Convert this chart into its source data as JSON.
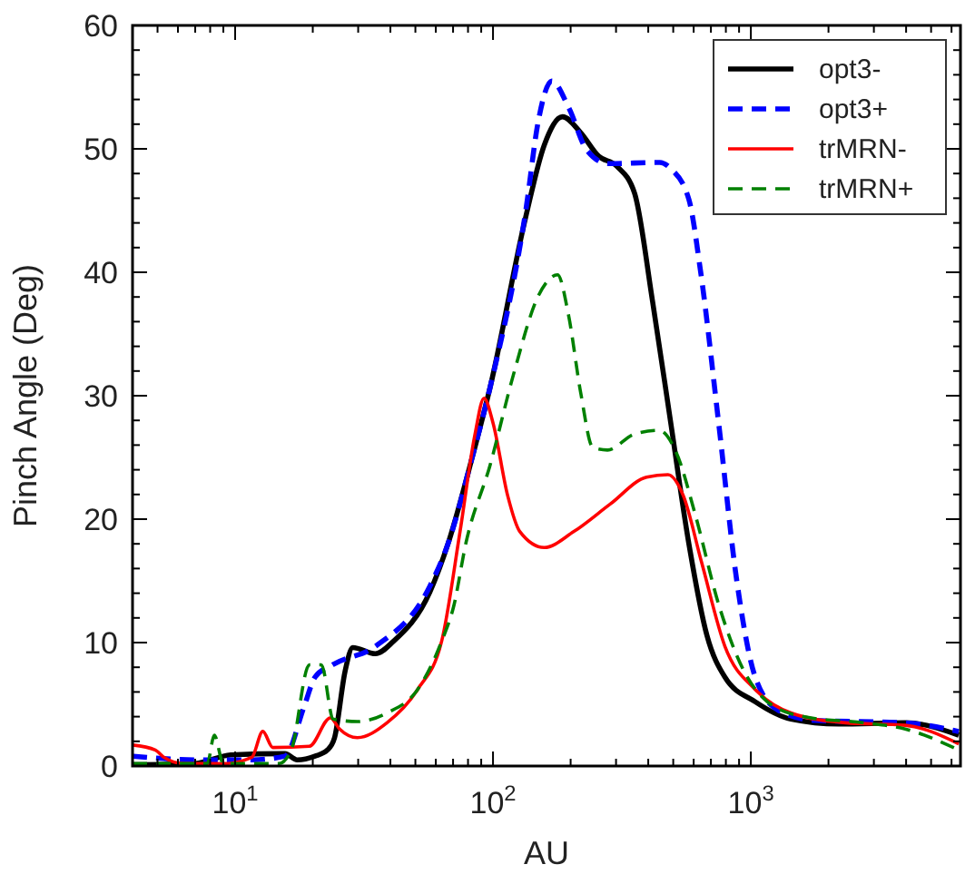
{
  "chart_data": {
    "type": "line",
    "xlabel": "AU",
    "ylabel": "Pinch Angle (Deg)",
    "log": "x",
    "xlim": [
      4,
      6500
    ],
    "ylim": [
      0,
      60
    ],
    "xticks": [
      {
        "value": 10,
        "label": "10$^{1}$"
      },
      {
        "value": 100,
        "label": "10$^{2}$"
      },
      {
        "value": 1000,
        "label": "10$^{3}$"
      }
    ],
    "yticks": [
      0,
      10,
      20,
      30,
      40,
      50,
      60
    ],
    "legend": "top right",
    "grid": false,
    "series": [
      {
        "name": "opt3-",
        "color": "#000000",
        "line_style": "solid",
        "x": [
          4,
          7,
          9.6,
          15.6,
          17.4,
          20.4,
          22.8,
          24.3,
          26.7,
          28.6,
          35,
          41.1,
          56.9,
          66.9,
          82.8,
          97.5,
          134,
          158,
          186,
          219,
          257,
          302,
          354,
          416,
          489,
          575,
          675,
          793,
          1040,
          1430,
          2190,
          3970,
          6400
        ],
        "values": [
          0.1,
          0.2,
          0.9,
          1.0,
          0.5,
          0.8,
          1.3,
          2.3,
          7.7,
          9.6,
          9.1,
          10.1,
          14.1,
          18,
          24.9,
          30.7,
          44.5,
          50.3,
          52.6,
          51.3,
          49.4,
          48.6,
          46.4,
          37.6,
          27.8,
          18,
          10.6,
          7.2,
          5.2,
          3.8,
          3.4,
          3.5,
          2.5
        ]
      },
      {
        "name": "opt3+",
        "color": "#0000ff",
        "line_style": "dashed",
        "x": [
          4,
          7,
          11.6,
          15.6,
          18.5,
          20.4,
          23.9,
          35,
          57,
          66.9,
          82.8,
          97.5,
          134,
          150,
          169,
          197,
          231,
          280,
          443,
          489,
          575,
          639,
          750,
          882,
          1040,
          1280,
          1770,
          3970,
          6400
        ],
        "values": [
          0.8,
          0.5,
          0.5,
          0.8,
          4.8,
          7.2,
          8.2,
          9.7,
          14.6,
          18,
          24.9,
          30.7,
          45,
          52.3,
          55.5,
          53.3,
          49.9,
          48.8,
          48.9,
          48.4,
          45.9,
          40,
          27.8,
          15,
          7.2,
          4.5,
          3.7,
          3.5,
          2.8
        ]
      },
      {
        "name": "trMRN-",
        "color": "#ff0000",
        "line_style": "solid",
        "x": [
          4,
          4.9,
          5.3,
          6.3,
          9.1,
          11.6,
          12.8,
          14,
          19.4,
          23.4,
          25.4,
          29.8,
          38.8,
          51,
          63.2,
          74.5,
          85,
          92.3,
          100,
          114,
          127,
          158,
          206,
          284,
          394,
          477,
          547,
          644,
          793,
          1040,
          1430,
          2330,
          3970,
          6400
        ],
        "values": [
          1.7,
          1.3,
          0.7,
          0.2,
          0.2,
          0.7,
          2.8,
          1.5,
          1.6,
          3.9,
          3.0,
          2.3,
          3.5,
          6.2,
          10.1,
          19,
          26.8,
          29.8,
          27.8,
          21.9,
          19,
          17.7,
          19,
          21.2,
          23.4,
          23.6,
          21.9,
          16.5,
          9.7,
          6.2,
          4.3,
          3.5,
          3.3,
          1.8
        ]
      },
      {
        "name": "trMRN+",
        "color": "#008000",
        "line_style": "dashed",
        "x": [
          4,
          7.8,
          8.3,
          9,
          14.8,
          16.5,
          19.4,
          21.6,
          24,
          29.8,
          38.8,
          51,
          63.2,
          70.5,
          78.4,
          97.5,
          120,
          150,
          178,
          196,
          219,
          244,
          278,
          354,
          440,
          516,
          608,
          750,
          940,
          1160,
          1600,
          2740,
          3970,
          6400
        ],
        "values": [
          0.2,
          0.2,
          2.5,
          0.2,
          0.2,
          1.3,
          8.2,
          8.2,
          3.8,
          3.6,
          4.3,
          6.2,
          10.1,
          13,
          18,
          24.4,
          31.7,
          38.1,
          39.8,
          36.6,
          30.2,
          25.8,
          25.6,
          26.9,
          27.2,
          25.3,
          20.4,
          13.1,
          7.7,
          5.2,
          4.0,
          3.5,
          3.0,
          1.3
        ]
      }
    ]
  }
}
